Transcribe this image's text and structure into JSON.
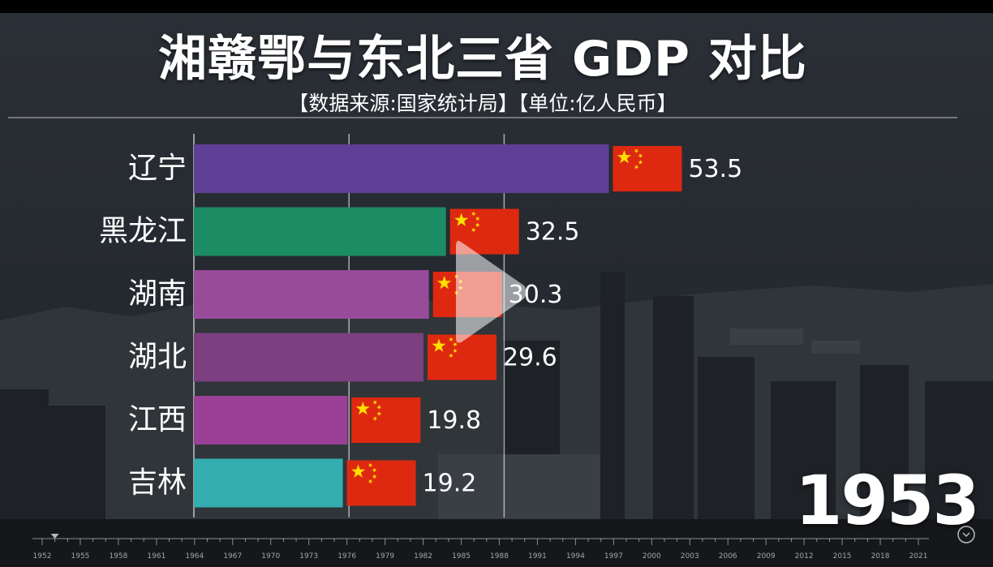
{
  "title": "湘赣鄂与东北三省 GDP 对比",
  "subtitle": "【数据来源:国家统计局】【单位:亿人民币】",
  "current_year": "1953",
  "icons": [
    "play-icon",
    "china-flag-icon",
    "watermark-icon"
  ],
  "chart_data": {
    "type": "bar",
    "orientation": "horizontal",
    "categories": [
      "辽宁",
      "黑龙江",
      "湖南",
      "湖北",
      "江西",
      "吉林"
    ],
    "values": [
      53.5,
      32.5,
      30.3,
      29.6,
      19.8,
      19.2
    ],
    "value_labels": [
      "53.5",
      "32.5",
      "30.3",
      "29.6",
      "19.8",
      "19.2"
    ],
    "colors": [
      "#5e3f95",
      "#1c8c64",
      "#984b99",
      "#7c3f80",
      "#9a4096",
      "#33adae"
    ],
    "xlim": [
      0,
      57.6
    ],
    "gridlines": [
      20,
      40
    ],
    "grid": true,
    "timeline": {
      "ticks": [
        "1952",
        "1955",
        "1958",
        "1961",
        "1964",
        "1967",
        "1970",
        "1973",
        "1976",
        "1979",
        "1982",
        "1985",
        "1988",
        "1991",
        "1994",
        "1997",
        "2000",
        "2003",
        "2006",
        "2009",
        "2012",
        "2015",
        "2018",
        "2021"
      ]
    }
  }
}
